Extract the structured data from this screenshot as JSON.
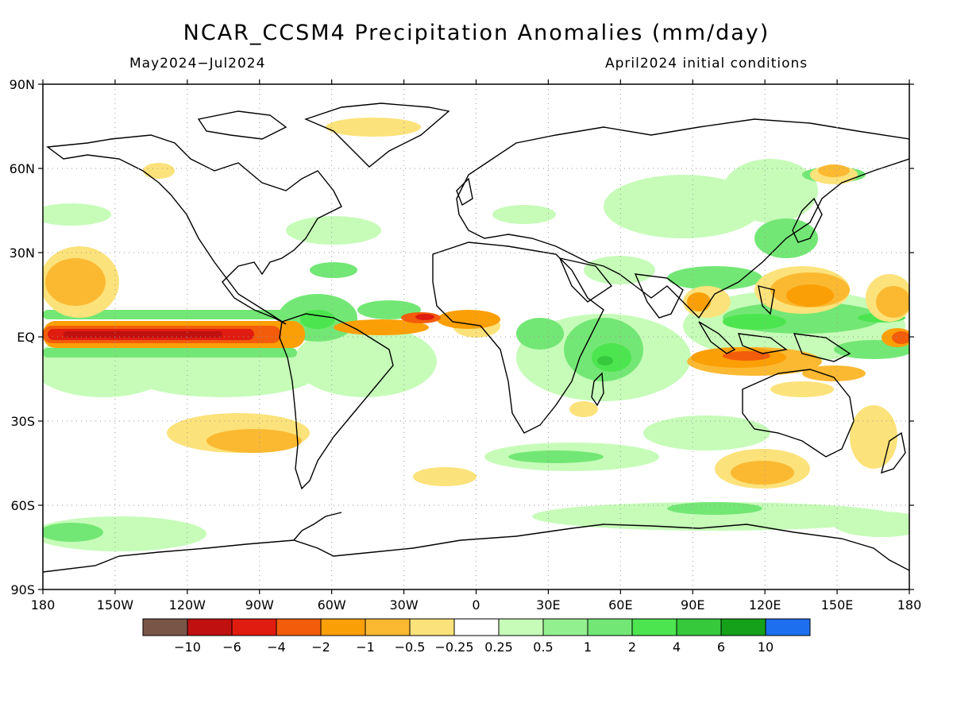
{
  "header": {
    "title": "NCAR_CCSM4 Precipitation Anomalies (mm/day)",
    "period": "May2024−Jul2024",
    "init": "April2024 initial conditions"
  },
  "map": {
    "lon_range": [
      -180,
      180
    ],
    "lat_range": [
      -90,
      90
    ],
    "lat_ticks": [
      {
        "value": 90,
        "label": "90N"
      },
      {
        "value": 60,
        "label": "60N"
      },
      {
        "value": 30,
        "label": "30N"
      },
      {
        "value": 0,
        "label": "EQ"
      },
      {
        "value": -30,
        "label": "30S"
      },
      {
        "value": -60,
        "label": "60S"
      },
      {
        "value": -90,
        "label": "90S"
      }
    ],
    "lon_ticks": [
      {
        "value": -180,
        "label": "180"
      },
      {
        "value": -150,
        "label": "150W"
      },
      {
        "value": -120,
        "label": "120W"
      },
      {
        "value": -90,
        "label": "90W"
      },
      {
        "value": -60,
        "label": "60W"
      },
      {
        "value": -30,
        "label": "30W"
      },
      {
        "value": 0,
        "label": "0"
      },
      {
        "value": 30,
        "label": "30E"
      },
      {
        "value": 60,
        "label": "60E"
      },
      {
        "value": 90,
        "label": "90E"
      },
      {
        "value": 120,
        "label": "120E"
      },
      {
        "value": 150,
        "label": "150E"
      },
      {
        "value": 180,
        "label": "180"
      }
    ],
    "grid": true
  },
  "legend": {
    "colors": [
      "#795548",
      "#c01010",
      "#e01c10",
      "#f25c0a",
      "#fb9f07",
      "#fbb932",
      "#fce27a",
      "#ffffff",
      "#c6fcb8",
      "#93f08f",
      "#73e775",
      "#4ce54f",
      "#36c93c",
      "#15a11a",
      "#1e6ff0"
    ],
    "labels": [
      "−10",
      "−6",
      "−4",
      "−2",
      "−1",
      "−0.5",
      "−0.25",
      "0.25",
      "0.5",
      "1",
      "2",
      "4",
      "6",
      "10"
    ]
  }
}
